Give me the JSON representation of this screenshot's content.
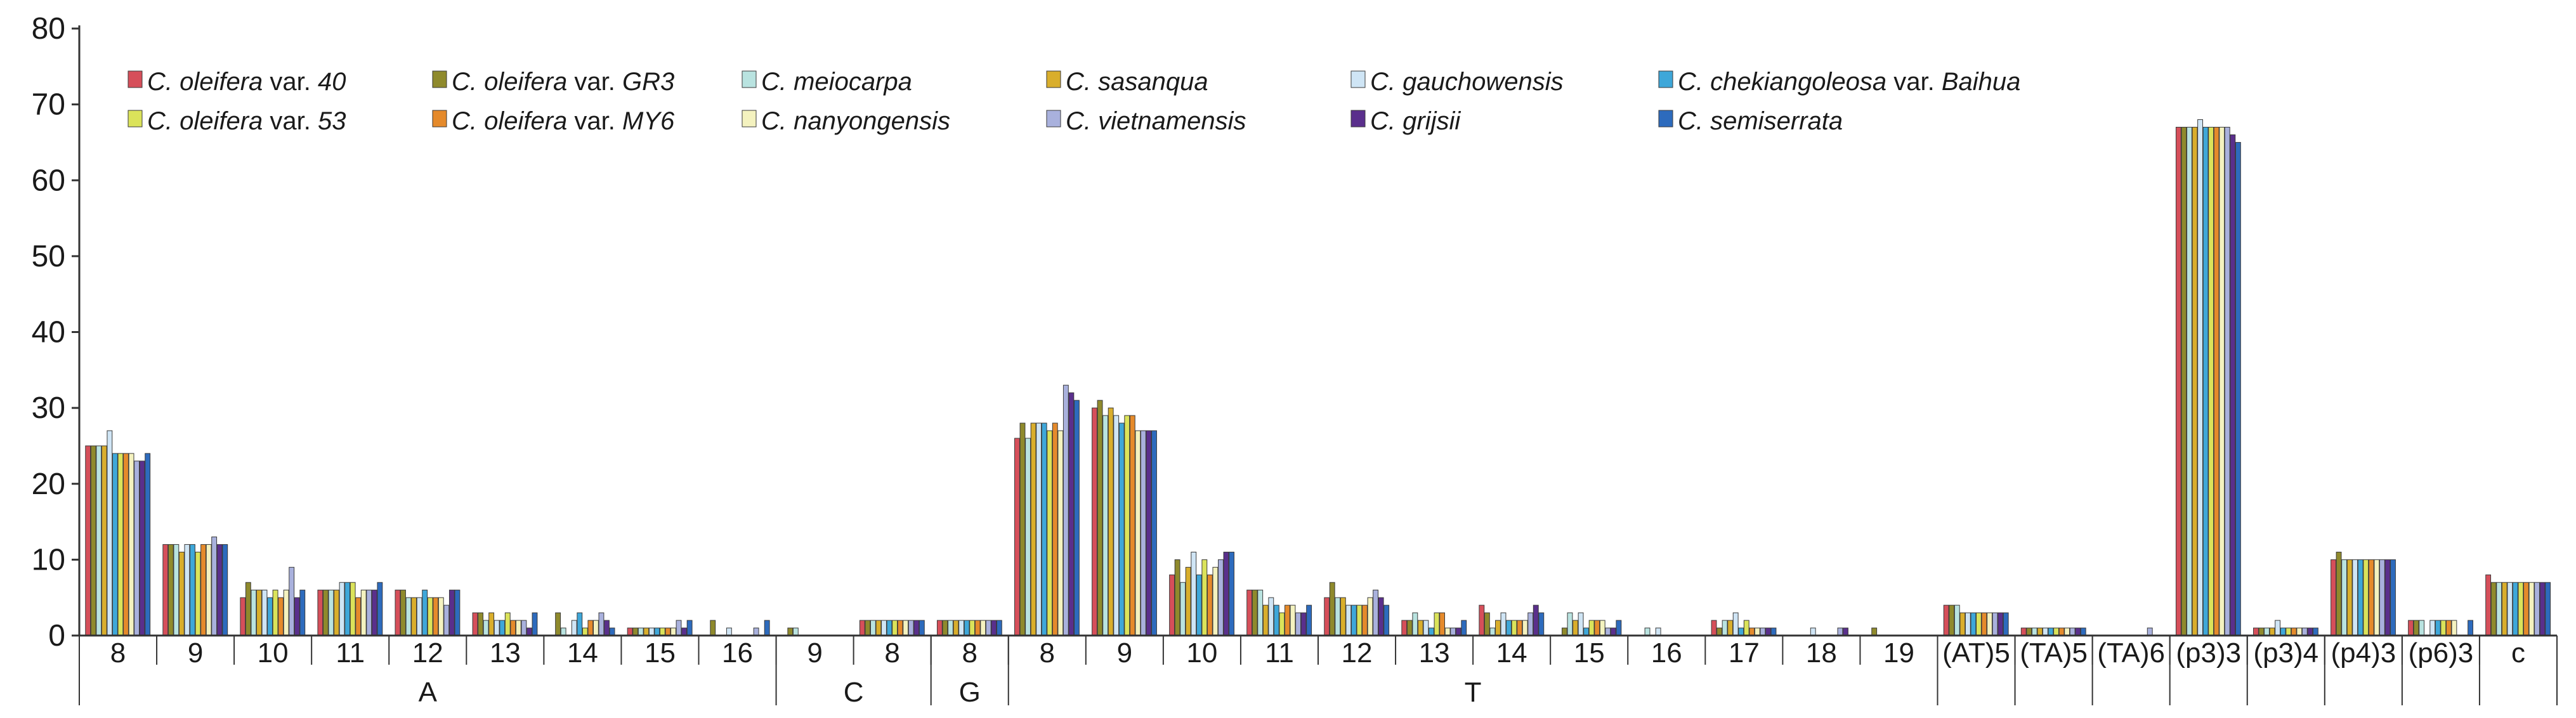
{
  "chart_data": {
    "type": "bar",
    "ylim": [
      0,
      80
    ],
    "yticks": [
      0,
      10,
      20,
      30,
      40,
      50,
      60,
      70,
      80
    ],
    "categories": [
      {
        "label": "8",
        "group": "A"
      },
      {
        "label": "9",
        "group": "A"
      },
      {
        "label": "10",
        "group": "A"
      },
      {
        "label": "11",
        "group": "A"
      },
      {
        "label": "12",
        "group": "A"
      },
      {
        "label": "13",
        "group": "A"
      },
      {
        "label": "14",
        "group": "A"
      },
      {
        "label": "15",
        "group": "A"
      },
      {
        "label": "16",
        "group": "A"
      },
      {
        "label": "9",
        "group": "C"
      },
      {
        "label": "8",
        "group": "C"
      },
      {
        "label": "8",
        "group": "G"
      },
      {
        "label": "8",
        "group": "T"
      },
      {
        "label": "9",
        "group": "T"
      },
      {
        "label": "10",
        "group": "T"
      },
      {
        "label": "11",
        "group": "T"
      },
      {
        "label": "12",
        "group": "T"
      },
      {
        "label": "13",
        "group": "T"
      },
      {
        "label": "14",
        "group": "T"
      },
      {
        "label": "15",
        "group": "T"
      },
      {
        "label": "16",
        "group": "T"
      },
      {
        "label": "17",
        "group": "T"
      },
      {
        "label": "18",
        "group": "T"
      },
      {
        "label": "19",
        "group": "T"
      },
      {
        "label": "(AT)5",
        "group": ""
      },
      {
        "label": "(TA)5",
        "group": ""
      },
      {
        "label": "(TA)6",
        "group": ""
      },
      {
        "label": "(p3)3",
        "group": ""
      },
      {
        "label": "(p3)4",
        "group": ""
      },
      {
        "label": "(p4)3",
        "group": ""
      },
      {
        "label": "(p6)3",
        "group": ""
      },
      {
        "label": "c",
        "group": ""
      }
    ],
    "groups": [
      "A",
      "C",
      "G",
      "T"
    ],
    "series": [
      {
        "name_parts": [
          [
            "C. oleifera",
            "i"
          ],
          [
            " var. ",
            "n"
          ],
          [
            "40",
            "i"
          ]
        ],
        "color": "#d64f5a",
        "values": [
          25,
          12,
          5,
          6,
          6,
          3,
          0,
          1,
          0,
          0,
          2,
          2,
          26,
          30,
          8,
          6,
          5,
          2,
          4,
          0,
          0,
          2,
          0,
          0,
          4,
          1,
          0,
          67,
          1,
          10,
          2,
          8
        ]
      },
      {
        "name_parts": [
          [
            "C. oleifera",
            "i"
          ],
          [
            " var. ",
            "n"
          ],
          [
            "GR3",
            "i"
          ]
        ],
        "color": "#8f8a2c",
        "values": [
          25,
          12,
          7,
          6,
          6,
          3,
          3,
          1,
          2,
          1,
          2,
          2,
          28,
          31,
          10,
          6,
          7,
          2,
          3,
          1,
          0,
          1,
          0,
          1,
          4,
          1,
          0,
          67,
          1,
          11,
          2,
          7
        ]
      },
      {
        "name_parts": [
          [
            "C. meiocarpa",
            "i"
          ]
        ],
        "color": "#b9e3e0",
        "values": [
          25,
          12,
          6,
          6,
          5,
          2,
          1,
          1,
          0,
          1,
          2,
          2,
          26,
          29,
          7,
          6,
          5,
          3,
          1,
          3,
          1,
          2,
          0,
          0,
          4,
          1,
          0,
          67,
          1,
          10,
          2,
          7
        ]
      },
      {
        "name_parts": [
          [
            "C. sasanqua",
            "i"
          ]
        ],
        "color": "#d9ae2c",
        "values": [
          25,
          11,
          6,
          6,
          5,
          3,
          0,
          1,
          0,
          0,
          2,
          2,
          28,
          30,
          9,
          4,
          5,
          2,
          2,
          2,
          0,
          2,
          0,
          0,
          3,
          1,
          0,
          67,
          1,
          10,
          0,
          7
        ]
      },
      {
        "name_parts": [
          [
            "C. gauchowensis",
            "i"
          ]
        ],
        "color": "#cfe5f5",
        "values": [
          27,
          12,
          6,
          7,
          5,
          2,
          2,
          1,
          1,
          0,
          2,
          2,
          28,
          29,
          11,
          5,
          4,
          2,
          3,
          3,
          1,
          3,
          1,
          0,
          3,
          1,
          0,
          68,
          2,
          10,
          2,
          7
        ]
      },
      {
        "name_parts": [
          [
            "C. chekiangoleosa",
            "i"
          ],
          [
            " var. ",
            "n"
          ],
          [
            "Baihua",
            "i"
          ]
        ],
        "color": "#3ea7d9",
        "values": [
          24,
          12,
          5,
          7,
          6,
          2,
          3,
          1,
          0,
          0,
          2,
          2,
          28,
          28,
          8,
          4,
          4,
          1,
          2,
          1,
          0,
          1,
          0,
          0,
          3,
          1,
          0,
          67,
          1,
          10,
          2,
          7
        ]
      },
      {
        "name_parts": [
          [
            "C. oleifera",
            "i"
          ],
          [
            " var. ",
            "n"
          ],
          [
            "53",
            "i"
          ]
        ],
        "color": "#dbe35a",
        "values": [
          24,
          11,
          6,
          7,
          5,
          3,
          1,
          1,
          0,
          0,
          2,
          2,
          27,
          29,
          10,
          3,
          4,
          3,
          2,
          2,
          0,
          2,
          0,
          0,
          3,
          1,
          0,
          67,
          1,
          10,
          2,
          7
        ]
      },
      {
        "name_parts": [
          [
            "C. oleifera",
            "i"
          ],
          [
            " var. ",
            "n"
          ],
          [
            "MY6",
            "i"
          ]
        ],
        "color": "#e58a2b",
        "values": [
          24,
          12,
          5,
          5,
          5,
          2,
          2,
          1,
          0,
          0,
          2,
          2,
          28,
          29,
          8,
          4,
          4,
          3,
          2,
          2,
          0,
          1,
          0,
          0,
          3,
          1,
          0,
          67,
          1,
          10,
          2,
          7
        ]
      },
      {
        "name_parts": [
          [
            "C. nanyongensis",
            "i"
          ]
        ],
        "color": "#f4f2bf",
        "values": [
          24,
          12,
          6,
          6,
          5,
          2,
          2,
          1,
          0,
          0,
          2,
          2,
          27,
          27,
          9,
          4,
          5,
          1,
          2,
          2,
          0,
          1,
          0,
          0,
          3,
          1,
          0,
          67,
          1,
          10,
          2,
          7
        ]
      },
      {
        "name_parts": [
          [
            "C. vietnamensis",
            "i"
          ]
        ],
        "color": "#a9b1dd",
        "values": [
          23,
          13,
          9,
          6,
          4,
          2,
          3,
          2,
          1,
          0,
          2,
          2,
          33,
          27,
          10,
          3,
          6,
          1,
          3,
          1,
          0,
          1,
          1,
          0,
          3,
          1,
          1,
          67,
          1,
          10,
          0,
          7
        ]
      },
      {
        "name_parts": [
          [
            "C. grijsii",
            "i"
          ]
        ],
        "color": "#5a2f8c",
        "values": [
          23,
          12,
          5,
          6,
          6,
          1,
          2,
          1,
          0,
          0,
          2,
          2,
          32,
          27,
          11,
          3,
          5,
          1,
          4,
          1,
          0,
          1,
          1,
          0,
          3,
          1,
          0,
          66,
          1,
          10,
          0,
          7
        ]
      },
      {
        "name_parts": [
          [
            "C. semiserrata",
            "i"
          ]
        ],
        "color": "#2d6bbd",
        "values": [
          24,
          12,
          6,
          7,
          6,
          3,
          1,
          2,
          2,
          0,
          2,
          2,
          31,
          27,
          11,
          4,
          4,
          2,
          3,
          2,
          0,
          1,
          0,
          0,
          3,
          1,
          0,
          65,
          1,
          10,
          2,
          7
        ]
      }
    ]
  }
}
